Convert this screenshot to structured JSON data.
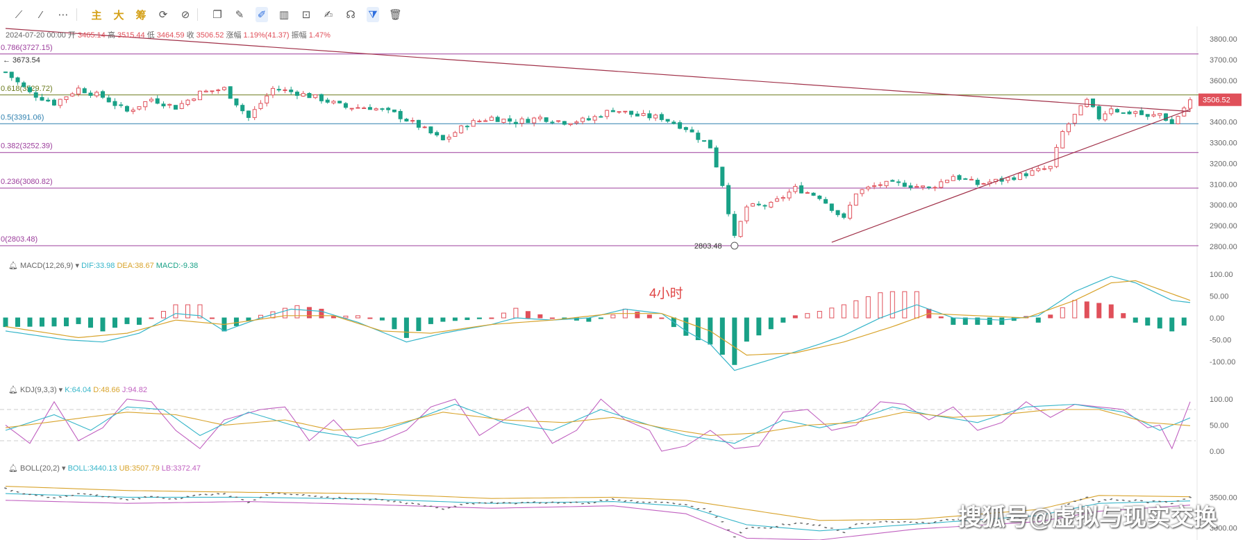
{
  "toolbar": {
    "items": [
      {
        "name": "line-tool-icon",
        "glyph": "⟋"
      },
      {
        "name": "ray-tool-icon",
        "glyph": "⁄"
      },
      {
        "name": "more-icon",
        "glyph": "⋯"
      },
      {
        "name": "main-chart-button",
        "glyph": "主"
      },
      {
        "name": "large-button",
        "glyph": "大"
      },
      {
        "name": "chips-button",
        "glyph": "筹"
      },
      {
        "name": "rotate-icon",
        "glyph": "⟳"
      },
      {
        "name": "measure-icon",
        "glyph": "⊘"
      },
      {
        "name": "copy-icon",
        "glyph": "❐"
      },
      {
        "name": "brush-icon",
        "glyph": "✎"
      },
      {
        "name": "draw-icon",
        "glyph": "✐"
      },
      {
        "name": "candlestick-icon",
        "glyph": "▥"
      },
      {
        "name": "lock-icon",
        "glyph": "⊡"
      },
      {
        "name": "edit-icon",
        "glyph": "✍"
      },
      {
        "name": "magnet-icon",
        "glyph": "☊"
      },
      {
        "name": "filter-icon",
        "glyph": "⧩"
      },
      {
        "name": "delete-icon",
        "glyph": "🗑"
      }
    ]
  },
  "info": {
    "date": "2024-07-20 00:00",
    "open_label": "开",
    "open": "3465.14",
    "high_label": "高",
    "high": "3515.44",
    "low_label": "低",
    "low": "3464.59",
    "close_label": "收",
    "close": "3506.52",
    "change_label": "涨幅",
    "change": "1.19%(41.37)",
    "amp_label": "振幅",
    "amp": "1.47%"
  },
  "annotation": "4小时",
  "watermark": "搜狐号@虚拟与现实交换",
  "colors": {
    "up": "#e0505a",
    "down": "#19a187",
    "fib": "#9b3c9b",
    "trend": "#a03048",
    "dif": "#35b5c9",
    "dea": "#d8a32b",
    "j": "#c060c0"
  },
  "chart_data": [
    {
      "type": "candlestick",
      "name_label": "4小时",
      "y_axis_ticks": [
        "3800.00",
        "3700.00",
        "3600.00",
        "3500.00",
        "3400.00",
        "3300.00",
        "3200.00",
        "3100.00",
        "3000.00",
        "2900.00",
        "2800.00"
      ],
      "ylim": [
        2800,
        3820
      ],
      "last_price": "3506.52",
      "high_marker": "3673.54",
      "low_marker": "2803.48",
      "fib_levels": [
        {
          "label": "0.786(3727.15)",
          "value": 3727.15
        },
        {
          "label": "0.618(3529.72)",
          "value": 3529.72
        },
        {
          "label": "0.5(3391.06)",
          "value": 3391.06
        },
        {
          "label": "0.382(3252.39)",
          "value": 3252.39
        },
        {
          "label": "0.236(3080.82)",
          "value": 3080.82
        },
        {
          "label": "0(2803.48)",
          "value": 2803.48
        }
      ],
      "close_path": [
        [
          0,
          3640
        ],
        [
          4,
          3540
        ],
        [
          8,
          3490
        ],
        [
          12,
          3560
        ],
        [
          16,
          3520
        ],
        [
          20,
          3450
        ],
        [
          24,
          3510
        ],
        [
          28,
          3470
        ],
        [
          32,
          3540
        ],
        [
          36,
          3560
        ],
        [
          40,
          3420
        ],
        [
          44,
          3560
        ],
        [
          48,
          3540
        ],
        [
          52,
          3510
        ],
        [
          56,
          3470
        ],
        [
          60,
          3470
        ],
        [
          64,
          3440
        ],
        [
          68,
          3380
        ],
        [
          72,
          3310
        ],
        [
          76,
          3390
        ],
        [
          80,
          3420
        ],
        [
          84,
          3400
        ],
        [
          88,
          3420
        ],
        [
          92,
          3400
        ],
        [
          96,
          3410
        ],
        [
          100,
          3460
        ],
        [
          104,
          3430
        ],
        [
          108,
          3420
        ],
        [
          112,
          3370
        ],
        [
          116,
          3280
        ],
        [
          118,
          3100
        ],
        [
          120,
          2840
        ],
        [
          122,
          2990
        ],
        [
          126,
          3000
        ],
        [
          130,
          3080
        ],
        [
          134,
          3040
        ],
        [
          138,
          2930
        ],
        [
          140,
          3060
        ],
        [
          144,
          3100
        ],
        [
          148,
          3100
        ],
        [
          152,
          3080
        ],
        [
          156,
          3140
        ],
        [
          160,
          3100
        ],
        [
          164,
          3120
        ],
        [
          168,
          3150
        ],
        [
          172,
          3180
        ],
        [
          174,
          3350
        ],
        [
          176,
          3430
        ],
        [
          178,
          3500
        ],
        [
          180,
          3420
        ],
        [
          182,
          3470
        ],
        [
          184,
          3440
        ],
        [
          186,
          3450
        ],
        [
          188,
          3420
        ],
        [
          190,
          3440
        ],
        [
          192,
          3390
        ],
        [
          195,
          3506.52
        ]
      ],
      "trendlines": [
        {
          "from": [
            0,
            3850
          ],
          "to": [
            195,
            3450
          ]
        },
        {
          "from": [
            136,
            2820
          ],
          "to": [
            195,
            3460
          ]
        }
      ]
    },
    {
      "type": "macd",
      "title": "MACD(12,26,9)",
      "dif_label": "DIF:",
      "dif": "33.98",
      "dea_label": "DEA:",
      "dea": "38.67",
      "macd_label": "MACD:",
      "macd": "-9.38",
      "y_axis_ticks": [
        "100.00",
        "50.00",
        "0.00",
        "-50.00",
        "-100.00"
      ],
      "ylim": [
        -130,
        130
      ],
      "dif_path": [
        [
          0,
          -30
        ],
        [
          10,
          -50
        ],
        [
          16,
          -55
        ],
        [
          22,
          -35
        ],
        [
          28,
          10
        ],
        [
          32,
          5
        ],
        [
          36,
          -30
        ],
        [
          42,
          0
        ],
        [
          47,
          20
        ],
        [
          52,
          15
        ],
        [
          58,
          -10
        ],
        [
          66,
          -55
        ],
        [
          72,
          -35
        ],
        [
          80,
          -15
        ],
        [
          84,
          0
        ],
        [
          90,
          -5
        ],
        [
          96,
          0
        ],
        [
          102,
          20
        ],
        [
          108,
          10
        ],
        [
          112,
          -30
        ],
        [
          116,
          -60
        ],
        [
          120,
          -120
        ],
        [
          126,
          -95
        ],
        [
          134,
          -60
        ],
        [
          138,
          -40
        ],
        [
          144,
          0
        ],
        [
          150,
          30
        ],
        [
          156,
          0
        ],
        [
          164,
          -5
        ],
        [
          170,
          5
        ],
        [
          176,
          60
        ],
        [
          182,
          95
        ],
        [
          186,
          80
        ],
        [
          192,
          40
        ],
        [
          195,
          35
        ]
      ],
      "dea_path": [
        [
          0,
          -20
        ],
        [
          12,
          -45
        ],
        [
          20,
          -35
        ],
        [
          28,
          -5
        ],
        [
          36,
          -15
        ],
        [
          46,
          5
        ],
        [
          54,
          5
        ],
        [
          62,
          -30
        ],
        [
          70,
          -35
        ],
        [
          80,
          -15
        ],
        [
          90,
          -5
        ],
        [
          100,
          10
        ],
        [
          108,
          10
        ],
        [
          116,
          -30
        ],
        [
          122,
          -85
        ],
        [
          130,
          -80
        ],
        [
          138,
          -55
        ],
        [
          146,
          -20
        ],
        [
          152,
          10
        ],
        [
          160,
          5
        ],
        [
          168,
          0
        ],
        [
          176,
          40
        ],
        [
          182,
          80
        ],
        [
          186,
          85
        ],
        [
          192,
          55
        ],
        [
          195,
          40
        ]
      ]
    },
    {
      "type": "kdj",
      "title": "KDJ(9,3,3)",
      "k_label": "K:",
      "k": "64.04",
      "d_label": "D:",
      "d": "48.66",
      "j_label": "J:",
      "j": "94.82",
      "y_axis_ticks": [
        "100.00",
        "50.00",
        "0.00"
      ],
      "ylim": [
        -20,
        120
      ],
      "j_path": [
        [
          0,
          50
        ],
        [
          4,
          15
        ],
        [
          8,
          95
        ],
        [
          12,
          20
        ],
        [
          16,
          45
        ],
        [
          20,
          100
        ],
        [
          24,
          95
        ],
        [
          28,
          40
        ],
        [
          32,
          5
        ],
        [
          36,
          60
        ],
        [
          42,
          80
        ],
        [
          46,
          85
        ],
        [
          50,
          20
        ],
        [
          54,
          60
        ],
        [
          58,
          10
        ],
        [
          62,
          20
        ],
        [
          66,
          40
        ],
        [
          70,
          85
        ],
        [
          74,
          100
        ],
        [
          78,
          30
        ],
        [
          82,
          60
        ],
        [
          86,
          85
        ],
        [
          90,
          15
        ],
        [
          94,
          40
        ],
        [
          98,
          100
        ],
        [
          102,
          60
        ],
        [
          106,
          40
        ],
        [
          108,
          0
        ],
        [
          112,
          10
        ],
        [
          116,
          40
        ],
        [
          120,
          5
        ],
        [
          124,
          10
        ],
        [
          128,
          75
        ],
        [
          132,
          80
        ],
        [
          136,
          40
        ],
        [
          140,
          50
        ],
        [
          144,
          95
        ],
        [
          148,
          90
        ],
        [
          152,
          60
        ],
        [
          156,
          85
        ],
        [
          160,
          40
        ],
        [
          164,
          55
        ],
        [
          168,
          95
        ],
        [
          172,
          65
        ],
        [
          176,
          90
        ],
        [
          180,
          85
        ],
        [
          184,
          80
        ],
        [
          188,
          45
        ],
        [
          190,
          50
        ],
        [
          192,
          5
        ],
        [
          195,
          95
        ]
      ],
      "k_path": [
        [
          0,
          40
        ],
        [
          8,
          70
        ],
        [
          14,
          40
        ],
        [
          20,
          85
        ],
        [
          26,
          80
        ],
        [
          32,
          30
        ],
        [
          40,
          75
        ],
        [
          50,
          40
        ],
        [
          58,
          25
        ],
        [
          66,
          55
        ],
        [
          74,
          90
        ],
        [
          82,
          55
        ],
        [
          90,
          40
        ],
        [
          98,
          80
        ],
        [
          106,
          50
        ],
        [
          112,
          30
        ],
        [
          120,
          15
        ],
        [
          128,
          60
        ],
        [
          134,
          45
        ],
        [
          140,
          60
        ],
        [
          146,
          85
        ],
        [
          152,
          70
        ],
        [
          160,
          55
        ],
        [
          168,
          85
        ],
        [
          176,
          90
        ],
        [
          184,
          75
        ],
        [
          190,
          40
        ],
        [
          195,
          64
        ]
      ],
      "d_path": [
        [
          0,
          45
        ],
        [
          10,
          60
        ],
        [
          20,
          75
        ],
        [
          28,
          70
        ],
        [
          36,
          50
        ],
        [
          46,
          60
        ],
        [
          54,
          40
        ],
        [
          62,
          45
        ],
        [
          72,
          75
        ],
        [
          82,
          60
        ],
        [
          92,
          55
        ],
        [
          100,
          65
        ],
        [
          108,
          45
        ],
        [
          116,
          30
        ],
        [
          124,
          35
        ],
        [
          132,
          50
        ],
        [
          140,
          55
        ],
        [
          148,
          75
        ],
        [
          156,
          65
        ],
        [
          164,
          70
        ],
        [
          172,
          80
        ],
        [
          180,
          80
        ],
        [
          188,
          55
        ],
        [
          195,
          49
        ]
      ]
    },
    {
      "type": "boll",
      "title": "BOLL(20,2)",
      "boll_label": "BOLL:",
      "boll": "3440.13",
      "ub_label": "UB:",
      "ub": "3507.79",
      "lb_label": "LB:",
      "lb": "3372.47",
      "y_axis_ticks": [
        "3500.00",
        "3000.00"
      ],
      "ylim": [
        2800,
        3800
      ],
      "mid_path": [
        [
          0,
          3560
        ],
        [
          20,
          3500
        ],
        [
          40,
          3500
        ],
        [
          60,
          3470
        ],
        [
          80,
          3400
        ],
        [
          100,
          3430
        ],
        [
          112,
          3350
        ],
        [
          122,
          3050
        ],
        [
          134,
          2950
        ],
        [
          150,
          3060
        ],
        [
          170,
          3200
        ],
        [
          180,
          3400
        ],
        [
          195,
          3440
        ]
      ],
      "ub_path": [
        [
          0,
          3680
        ],
        [
          20,
          3610
        ],
        [
          40,
          3580
        ],
        [
          60,
          3560
        ],
        [
          80,
          3480
        ],
        [
          100,
          3500
        ],
        [
          112,
          3450
        ],
        [
          122,
          3300
        ],
        [
          134,
          3120
        ],
        [
          150,
          3140
        ],
        [
          170,
          3300
        ],
        [
          180,
          3530
        ],
        [
          195,
          3508
        ]
      ],
      "lb_path": [
        [
          0,
          3450
        ],
        [
          20,
          3400
        ],
        [
          40,
          3430
        ],
        [
          60,
          3380
        ],
        [
          80,
          3320
        ],
        [
          100,
          3360
        ],
        [
          112,
          3230
        ],
        [
          122,
          2830
        ],
        [
          134,
          2800
        ],
        [
          150,
          2980
        ],
        [
          170,
          3100
        ],
        [
          180,
          3270
        ],
        [
          195,
          3372
        ]
      ]
    }
  ]
}
